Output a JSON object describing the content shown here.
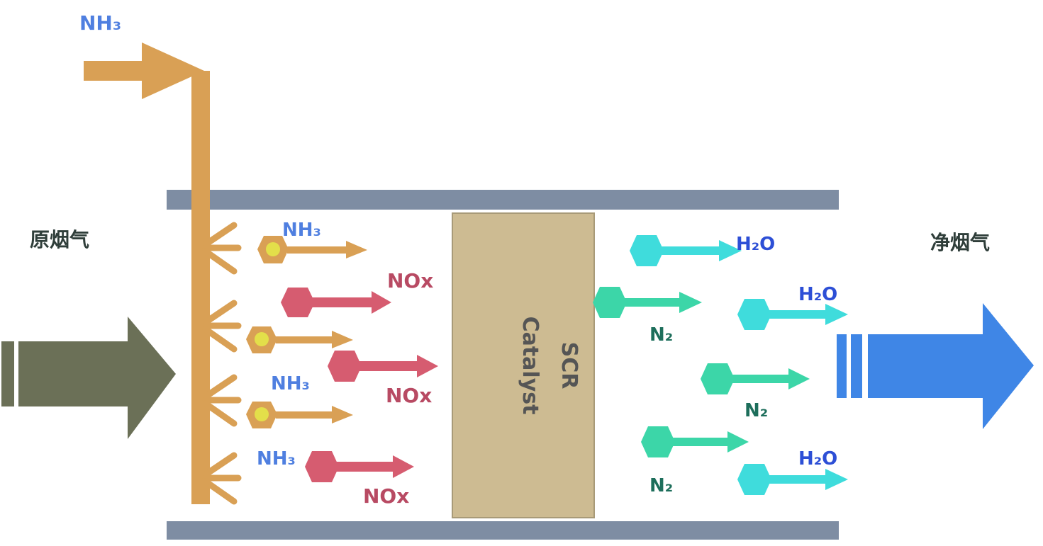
{
  "labels": {
    "nh3_top": "NH₃",
    "raw_gas": "原烟气",
    "clean_gas": "净烟气",
    "catalyst_line1": "SCR",
    "catalyst_line2": "Catalyst",
    "nh3_1": "NH₃",
    "nh3_2": "NH₃",
    "nh3_3": "NH₃",
    "nox_1": "NOx",
    "nox_2": "NOx",
    "nox_3": "NOx",
    "n2_1": "N₂",
    "n2_2": "N₂",
    "n2_3": "N₂",
    "h2o_1": "H₂O",
    "h2o_2": "H₂O",
    "h2o_3": "H₂O"
  },
  "colors": {
    "nh3_pipe": "#d9a055",
    "duct_wall": "#7e8da3",
    "raw_gas_arrow": "#6b7057",
    "clean_gas_arrow": "#3f86e6",
    "catalyst_fill": "#cdbb92",
    "nh3_particle": "#d9a055",
    "nh3_particle_core": "#e3df4a",
    "nox_particle": "#d65c70",
    "n2_particle": "#3cd6a8",
    "h2o_particle": "#3fdcdc",
    "nh3_label": "#4f7fe0",
    "nox_label": "#b84a63",
    "n2_label": "#1d6e5b",
    "h2o_label": "#2d4fd6",
    "dark_label": "#2f3e3a"
  }
}
